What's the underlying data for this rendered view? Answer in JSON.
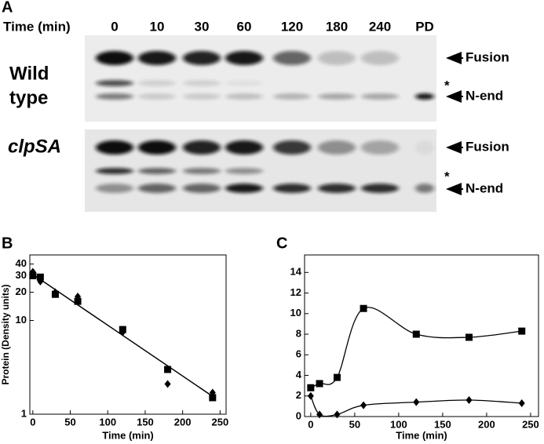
{
  "panel_a": {
    "label": "A",
    "time_label": "Time (min)",
    "lanes": [
      "0",
      "10",
      "30",
      "60",
      "120",
      "180",
      "240",
      "PD"
    ],
    "blots": [
      {
        "label_lines": [
          "Wild",
          "type"
        ],
        "fusion": "Fusion",
        "star": "*",
        "n_end": "N-end"
      },
      {
        "label_lines": [
          "clpSA"
        ],
        "fusion": "Fusion",
        "star": "*",
        "n_end": "N-end"
      }
    ]
  },
  "chart_data": [
    {
      "type": "scatter",
      "panel_label": "B",
      "ylabel": "Protein (Density units)",
      "xlabel": "Time (min)",
      "yscale": "log",
      "xlim": [
        -4,
        258
      ],
      "ylim": [
        1,
        50
      ],
      "xticks": [
        0,
        50,
        100,
        150,
        200,
        250
      ],
      "yticks": [
        1,
        10,
        20,
        30,
        40
      ],
      "series": [
        {
          "marker": "square",
          "color": "#000000",
          "x": [
            0,
            10,
            30,
            60,
            120,
            180,
            240
          ],
          "values": [
            30,
            29,
            19,
            16,
            8,
            3,
            1.5
          ]
        },
        {
          "marker": "diamond",
          "color": "#000000",
          "x": [
            0,
            10,
            30,
            60,
            120,
            180,
            240
          ],
          "values": [
            33,
            26,
            20,
            18,
            7.5,
            2.1,
            1.7
          ]
        }
      ],
      "fit": {
        "color": "#000000",
        "x": [
          0,
          240
        ],
        "values": [
          31,
          1.55
        ]
      }
    },
    {
      "type": "scatter",
      "panel_label": "C",
      "xlabel": "Time (min)",
      "curve": "smooth",
      "xlim": [
        -7,
        259
      ],
      "ylim": [
        0,
        15.7
      ],
      "xticks": [
        0,
        50,
        100,
        150,
        200,
        250
      ],
      "yticks": [
        0,
        2,
        4,
        6,
        8,
        10,
        12,
        14
      ],
      "series": [
        {
          "marker": "square",
          "color": "#000000",
          "x": [
            0,
            10,
            30,
            60,
            120,
            180,
            240
          ],
          "values": [
            2.8,
            3.2,
            3.8,
            10.5,
            8,
            7.7,
            8.3
          ]
        },
        {
          "marker": "diamond",
          "color": "#000000",
          "x": [
            0,
            10,
            30,
            60,
            120,
            180,
            240
          ],
          "values": [
            2,
            0.2,
            0.2,
            1.1,
            1.4,
            1.6,
            1.3
          ]
        }
      ]
    }
  ]
}
